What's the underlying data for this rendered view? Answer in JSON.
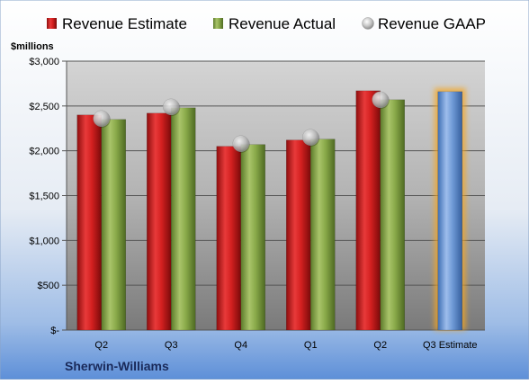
{
  "chart_data": {
    "type": "bar",
    "unit_label": "$millions",
    "categories": [
      "Q2",
      "Q3",
      "Q4",
      "Q1",
      "Q2",
      "Q3 Estimate"
    ],
    "series": [
      {
        "name": "Revenue Estimate",
        "kind": "bar",
        "color": "#d42020",
        "values": [
          2400,
          2420,
          2050,
          2120,
          2670,
          null
        ]
      },
      {
        "name": "Revenue Actual",
        "kind": "bar",
        "color": "#8aaa4a",
        "values": [
          2350,
          2480,
          2070,
          2130,
          2570,
          null
        ]
      },
      {
        "name": "Revenue GAAP",
        "kind": "marker",
        "color": "#b8b8b8",
        "values": [
          2360,
          2490,
          2080,
          2150,
          2570,
          null
        ]
      },
      {
        "name": "",
        "kind": "highlight-bar",
        "color": "#6f9ad6",
        "glow_color": "#f5a623",
        "values": [
          null,
          null,
          null,
          null,
          null,
          2660
        ]
      }
    ],
    "ylim": [
      0,
      3000
    ],
    "yticks": [
      0,
      500,
      1000,
      1500,
      2000,
      2500,
      3000
    ],
    "ytick_labels": [
      "$-",
      "$500",
      "$1,000",
      "$1,500",
      "$2,000",
      "$2,500",
      "$3,000"
    ],
    "grid": true,
    "legend_position": "top",
    "company": "Sherwin-Williams"
  }
}
